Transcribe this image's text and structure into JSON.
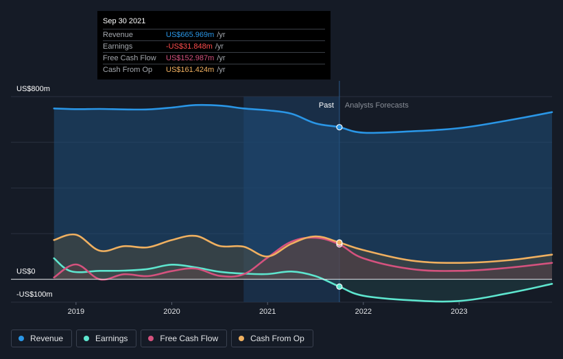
{
  "tooltip": {
    "date": "Sep 30 2021",
    "rows": [
      {
        "label": "Revenue",
        "value": "US$665.969m",
        "unit": "/yr",
        "color": "#2a96e6"
      },
      {
        "label": "Earnings",
        "value": "-US$31.848m",
        "unit": "/yr",
        "color": "#ff4d4d"
      },
      {
        "label": "Free Cash Flow",
        "value": "US$152.987m",
        "unit": "/yr",
        "color": "#d5527e"
      },
      {
        "label": "Cash From Op",
        "value": "US$161.424m",
        "unit": "/yr",
        "color": "#f0b060"
      }
    ]
  },
  "legend": [
    {
      "label": "Revenue",
      "color": "#2a96e6"
    },
    {
      "label": "Earnings",
      "color": "#5ee6cf"
    },
    {
      "label": "Free Cash Flow",
      "color": "#d5527e"
    },
    {
      "label": "Cash From Op",
      "color": "#f0b060"
    }
  ],
  "chart_data": {
    "type": "line",
    "title": "",
    "xlabel": "",
    "ylabel": "",
    "ylim": [
      -100,
      800
    ],
    "y_tick_labels": [
      {
        "value": 800,
        "label": "US$800m"
      },
      {
        "value": 0,
        "label": "US$0"
      },
      {
        "value": -100,
        "label": "-US$100m"
      }
    ],
    "x_ticks": [
      {
        "value": 2019,
        "label": "2019"
      },
      {
        "value": 2020,
        "label": "2020"
      },
      {
        "value": 2021,
        "label": "2021"
      },
      {
        "value": 2022,
        "label": "2022"
      },
      {
        "value": 2023,
        "label": "2023"
      }
    ],
    "xlim": [
      2018.55,
      2023.97
    ],
    "past_label": "Past",
    "forecast_label": "Analysts Forecasts",
    "divider_x": 2021.75,
    "highlight_range": [
      2020.75,
      2021.75
    ],
    "series": [
      {
        "name": "Revenue",
        "color": "#2a96e6",
        "points": [
          [
            2018.77,
            748
          ],
          [
            2019.0,
            745
          ],
          [
            2019.25,
            746
          ],
          [
            2019.5,
            744
          ],
          [
            2019.75,
            744
          ],
          [
            2020.0,
            752
          ],
          [
            2020.25,
            763
          ],
          [
            2020.52,
            760
          ],
          [
            2020.75,
            748
          ],
          [
            2021.0,
            740
          ],
          [
            2021.25,
            725
          ],
          [
            2021.5,
            683
          ],
          [
            2021.75,
            666
          ],
          [
            2022.0,
            642
          ],
          [
            2022.5,
            648
          ],
          [
            2023.0,
            662
          ],
          [
            2023.5,
            695
          ],
          [
            2023.97,
            732
          ]
        ]
      },
      {
        "name": "Earnings",
        "color": "#5ee6cf",
        "points": [
          [
            2018.77,
            92
          ],
          [
            2018.95,
            35
          ],
          [
            2019.25,
            37
          ],
          [
            2019.5,
            38
          ],
          [
            2019.75,
            45
          ],
          [
            2020.0,
            64
          ],
          [
            2020.25,
            52
          ],
          [
            2020.5,
            33
          ],
          [
            2020.75,
            25
          ],
          [
            2021.0,
            23
          ],
          [
            2021.25,
            34
          ],
          [
            2021.5,
            14
          ],
          [
            2021.75,
            -32
          ],
          [
            2022.0,
            -72
          ],
          [
            2022.5,
            -92
          ],
          [
            2023.0,
            -95
          ],
          [
            2023.5,
            -62
          ],
          [
            2023.97,
            -20
          ]
        ]
      },
      {
        "name": "Free Cash Flow",
        "color": "#d5527e",
        "points": [
          [
            2018.77,
            8
          ],
          [
            2019.0,
            65
          ],
          [
            2019.25,
            0
          ],
          [
            2019.5,
            22
          ],
          [
            2019.75,
            14
          ],
          [
            2020.0,
            36
          ],
          [
            2020.25,
            47
          ],
          [
            2020.5,
            15
          ],
          [
            2020.75,
            22
          ],
          [
            2021.0,
            95
          ],
          [
            2021.25,
            165
          ],
          [
            2021.5,
            182
          ],
          [
            2021.75,
            153
          ],
          [
            2022.0,
            92
          ],
          [
            2022.5,
            45
          ],
          [
            2023.0,
            37
          ],
          [
            2023.5,
            50
          ],
          [
            2023.97,
            72
          ]
        ]
      },
      {
        "name": "Cash From Op",
        "color": "#f0b060",
        "points": [
          [
            2018.77,
            172
          ],
          [
            2019.0,
            195
          ],
          [
            2019.25,
            125
          ],
          [
            2019.5,
            145
          ],
          [
            2019.75,
            140
          ],
          [
            2020.0,
            172
          ],
          [
            2020.25,
            190
          ],
          [
            2020.5,
            146
          ],
          [
            2020.75,
            143
          ],
          [
            2021.0,
            100
          ],
          [
            2021.25,
            156
          ],
          [
            2021.5,
            188
          ],
          [
            2021.75,
            161
          ],
          [
            2022.0,
            128
          ],
          [
            2022.5,
            82
          ],
          [
            2023.0,
            72
          ],
          [
            2023.5,
            83
          ],
          [
            2023.97,
            108
          ]
        ]
      }
    ]
  }
}
